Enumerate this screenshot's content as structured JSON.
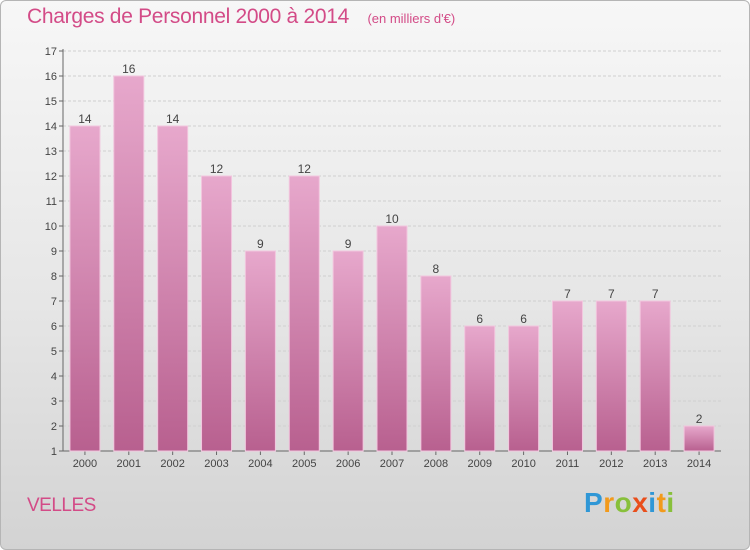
{
  "chart_data": {
    "type": "bar",
    "title": "Charges de Personnel 2000 à 2014",
    "subtitle": "(en milliers d'€)",
    "categories": [
      "2000",
      "2001",
      "2002",
      "2003",
      "2004",
      "2005",
      "2006",
      "2007",
      "2008",
      "2009",
      "2010",
      "2011",
      "2012",
      "2013",
      "2014"
    ],
    "values": [
      14,
      16,
      14,
      12,
      9,
      12,
      9,
      10,
      8,
      6,
      6,
      7,
      7,
      7,
      2
    ],
    "ylim": [
      1,
      17
    ],
    "yticks": [
      1,
      2,
      3,
      4,
      5,
      6,
      7,
      8,
      9,
      10,
      11,
      12,
      13,
      14,
      15,
      16,
      17
    ],
    "grid": true,
    "bar_color": "#e7a8cc",
    "bar_color_dark": "#b8608f"
  },
  "commune": "VELLES",
  "logo": {
    "text": "Proxiti",
    "letters": [
      "P",
      "r",
      "o",
      "x",
      "i",
      "t",
      "i"
    ],
    "colors": [
      "#2f97d6",
      "#f29a1b",
      "#88c03b",
      "#e94e1b",
      "#2f97d6",
      "#f29a1b",
      "#88c03b"
    ]
  }
}
